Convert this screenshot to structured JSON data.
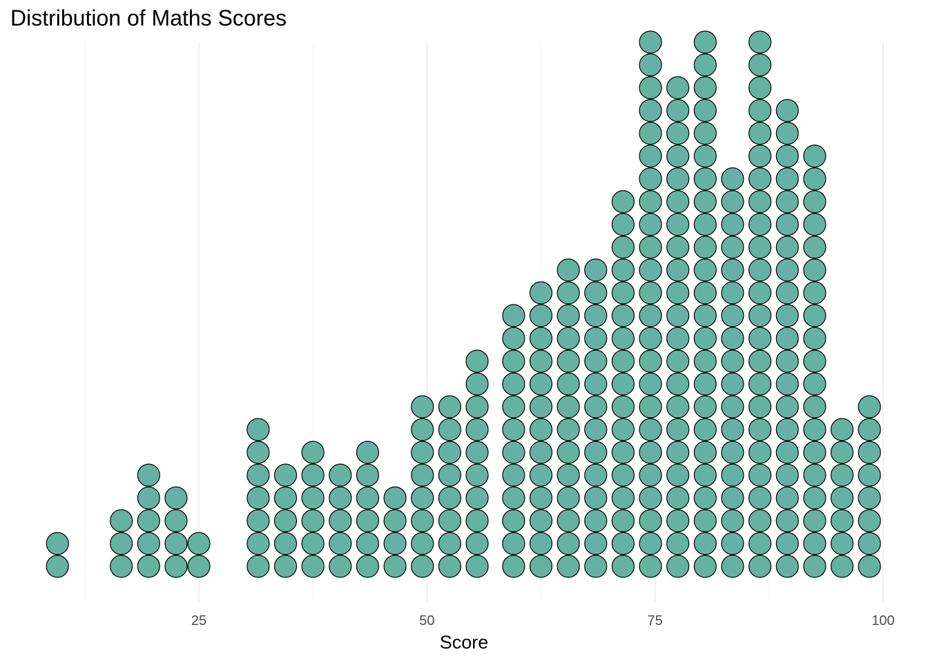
{
  "chart_data": {
    "type": "dotplot",
    "title": "Distribution of Maths Scores",
    "xlabel": "Score",
    "ylabel": "",
    "xlim": [
      9.5,
      100
    ],
    "x_ticks": [
      25,
      50,
      75,
      100
    ],
    "grid": "vertical",
    "legend": "none",
    "dot_fill": "#66b2a2",
    "dot_stroke": "#000000",
    "x": [
      9.5,
      16.5,
      19.5,
      22.5,
      25,
      31.5,
      34.5,
      37.5,
      40.5,
      43.5,
      46.5,
      49.5,
      52.5,
      55.5,
      59.5,
      62.5,
      65.5,
      68.5,
      71.5,
      74.5,
      77.5,
      80.5,
      83.5,
      86.5,
      89.5,
      92.5,
      95.5,
      98.5
    ],
    "counts": [
      2,
      3,
      5,
      4,
      2,
      7,
      5,
      6,
      5,
      6,
      4,
      8,
      8,
      10,
      12,
      13,
      14,
      14,
      17,
      24,
      22,
      24,
      18,
      24,
      21,
      19,
      7,
      8
    ]
  }
}
